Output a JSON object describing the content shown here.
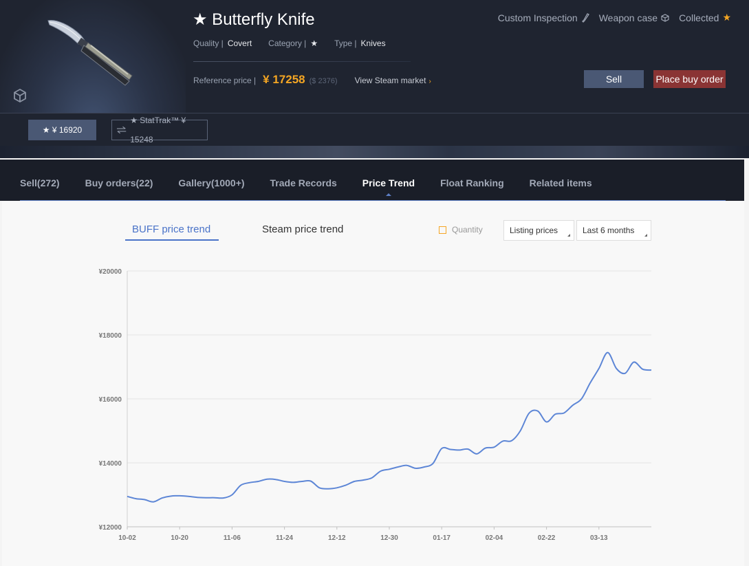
{
  "item": {
    "title": "★ Butterfly Knife",
    "quality_label": "Quality |",
    "quality_value": "Covert",
    "category_label": "Category |",
    "category_value": "★",
    "type_label": "Type |",
    "type_value": "Knives",
    "reference_label": "Reference price |",
    "reference_price": "¥ 17258",
    "reference_usd": "($ 2376)",
    "view_steam": "View Steam market",
    "steam_arrow": "›"
  },
  "top_links": {
    "custom_inspection": "Custom Inspection",
    "weapon_case": "Weapon case",
    "collected": "Collected"
  },
  "buttons": {
    "sell": "Sell",
    "place_buy_order": "Place buy order"
  },
  "variants": {
    "normal": "★ ¥ 16920",
    "stattrak": "★ StatTrak™ ¥ 15248"
  },
  "tabs": [
    {
      "label": "Sell(272)"
    },
    {
      "label": "Buy orders(22)"
    },
    {
      "label": "Gallery(1000+)"
    },
    {
      "label": "Trade Records"
    },
    {
      "label": "Price Trend"
    },
    {
      "label": "Float Ranking"
    },
    {
      "label": "Related items"
    }
  ],
  "trend": {
    "buff_tab": "BUFF price trend",
    "steam_tab": "Steam price trend",
    "quantity_label": "Quantity",
    "price_select": "Listing prices",
    "range_select": "Last 6 months"
  },
  "colors": {
    "accent_orange": "#f5a623",
    "line_blue": "#5d86d6",
    "sell_button": "#4a5874",
    "buy_button": "#8a3434"
  },
  "chart_data": {
    "type": "line",
    "title": "",
    "xlabel": "",
    "ylabel": "",
    "ylim": [
      12000,
      20000
    ],
    "yticks": [
      "¥20000",
      "¥18000",
      "¥16000",
      "¥14000",
      "¥12000"
    ],
    "ytick_values": [
      20000,
      18000,
      16000,
      14000,
      12000
    ],
    "xticks": [
      "10-02",
      "10-20",
      "11-06",
      "11-24",
      "12-12",
      "12-30",
      "01-17",
      "02-04",
      "02-22",
      "03-13"
    ],
    "grid": true,
    "series": [
      {
        "values": [
          12950,
          12880,
          12850,
          12780,
          12900,
          12960,
          12970,
          12950,
          12920,
          12910,
          12910,
          12900,
          13000,
          13300,
          13380,
          13420,
          13490,
          13480,
          13420,
          13390,
          13420,
          13430,
          13220,
          13190,
          13220,
          13300,
          13420,
          13460,
          13530,
          13740,
          13800,
          13870,
          13920,
          13830,
          13870,
          13980,
          14450,
          14420,
          14400,
          14430,
          14280,
          14460,
          14490,
          14680,
          14690,
          15000,
          15550,
          15620,
          15280,
          15520,
          15560,
          15800,
          16000,
          16500,
          16950,
          17450,
          16950,
          16800,
          17150,
          16930,
          16900
        ]
      }
    ]
  }
}
